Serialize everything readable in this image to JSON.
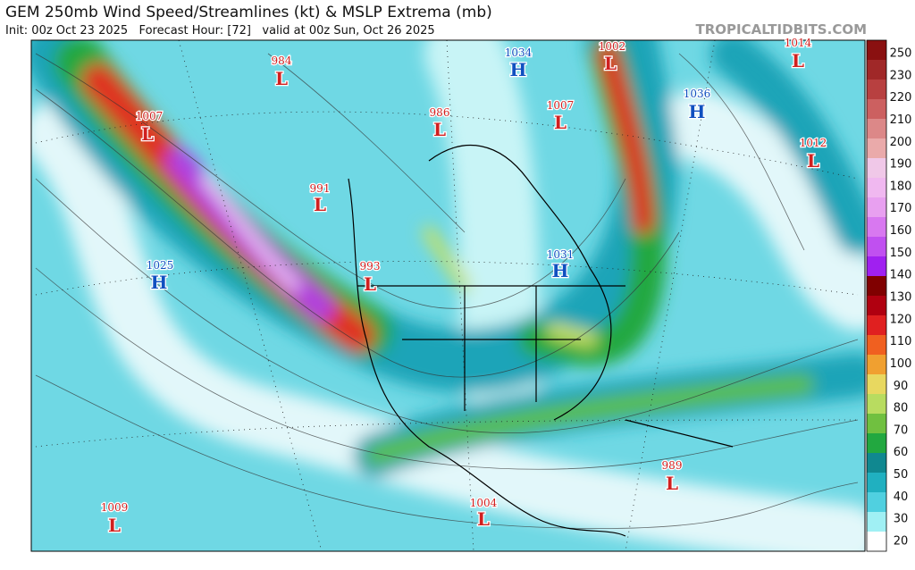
{
  "header": {
    "title": "GEM 250mb Wind Speed/Streamlines (kt) & MSLP Extrema (mb)",
    "subtitle": "Init: 00z Oct 23 2025   Forecast Hour: [72]   valid at 00z Sun, Oct 26 2025",
    "site": "TROPICALTIDBITS.COM"
  },
  "colorbar": {
    "labels": [
      "250",
      "230",
      "220",
      "210",
      "200",
      "190",
      "180",
      "170",
      "160",
      "150",
      "140",
      "130",
      "120",
      "110",
      "100",
      "90",
      "80",
      "70",
      "60",
      "50",
      "40",
      "30",
      "20"
    ]
  },
  "centers": [
    {
      "value": "984",
      "symbol": "L"
    },
    {
      "value": "1007",
      "symbol": "L"
    },
    {
      "value": "1034",
      "symbol": "H"
    },
    {
      "value": "1002",
      "symbol": "L"
    },
    {
      "value": "1014",
      "symbol": "L"
    },
    {
      "value": "986",
      "symbol": "L"
    },
    {
      "value": "1007",
      "symbol": "L"
    },
    {
      "value": "1036",
      "symbol": "H"
    },
    {
      "value": "1012",
      "symbol": "L"
    },
    {
      "value": "991",
      "symbol": "L"
    },
    {
      "value": "1025",
      "symbol": "H"
    },
    {
      "value": "993",
      "symbol": "L"
    },
    {
      "value": "1031",
      "symbol": "H"
    },
    {
      "value": "989",
      "symbol": "L"
    },
    {
      "value": "1004",
      "symbol": "L"
    },
    {
      "value": "1009",
      "symbol": "L"
    }
  ]
}
